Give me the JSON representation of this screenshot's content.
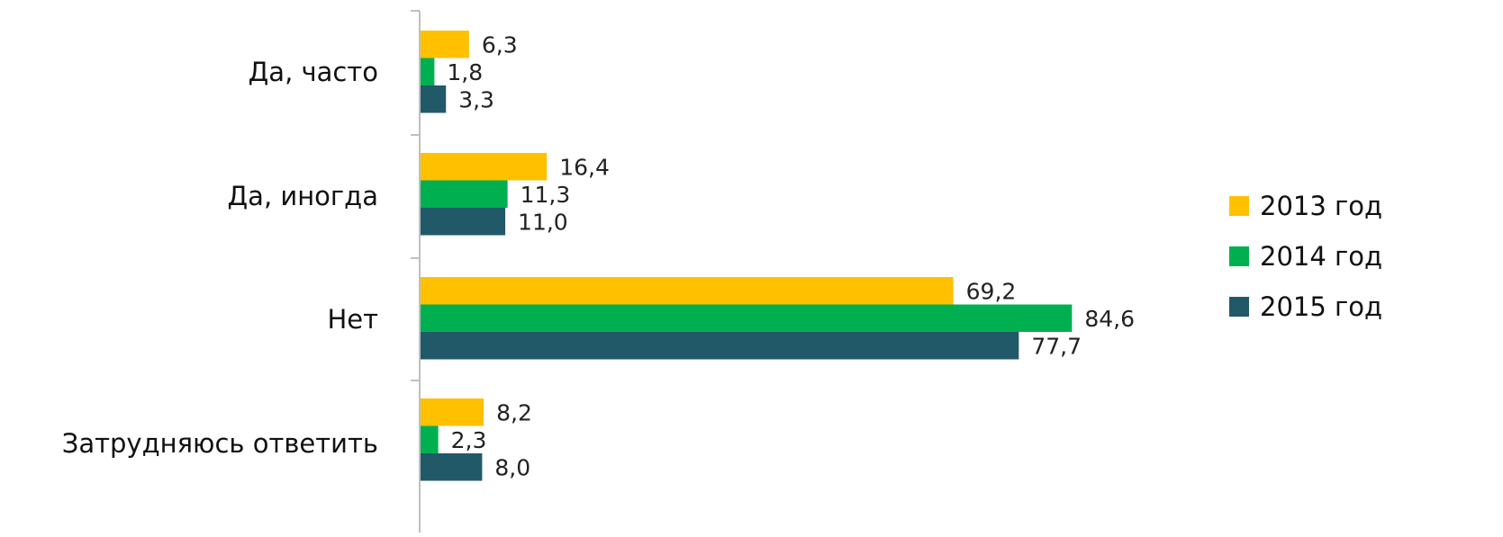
{
  "chart_data": {
    "type": "bar",
    "orientation": "horizontal",
    "categories": [
      "Да, часто",
      "Да, иногда",
      "Нет",
      "Затрудняюсь ответить"
    ],
    "series": [
      {
        "name": "2013 год",
        "color": "#FFC000",
        "values": [
          6.3,
          16.4,
          69.2,
          8.2
        ],
        "labels": [
          "6,3",
          "16,4",
          "69,2",
          "8,2"
        ]
      },
      {
        "name": "2014 год",
        "color": "#00B050",
        "values": [
          1.8,
          11.3,
          84.6,
          2.3
        ],
        "labels": [
          "1,8",
          "11,3",
          "84,6",
          "2,3"
        ]
      },
      {
        "name": "2015 год",
        "color": "#215968",
        "values": [
          3.3,
          11.0,
          77.7,
          8.0
        ],
        "labels": [
          "3,3",
          "11,0",
          "77,7",
          "8,0"
        ]
      }
    ],
    "xlim": [
      0,
      100
    ],
    "grid": false,
    "legend_position": "right",
    "axis_color": "#BFBFBF"
  }
}
